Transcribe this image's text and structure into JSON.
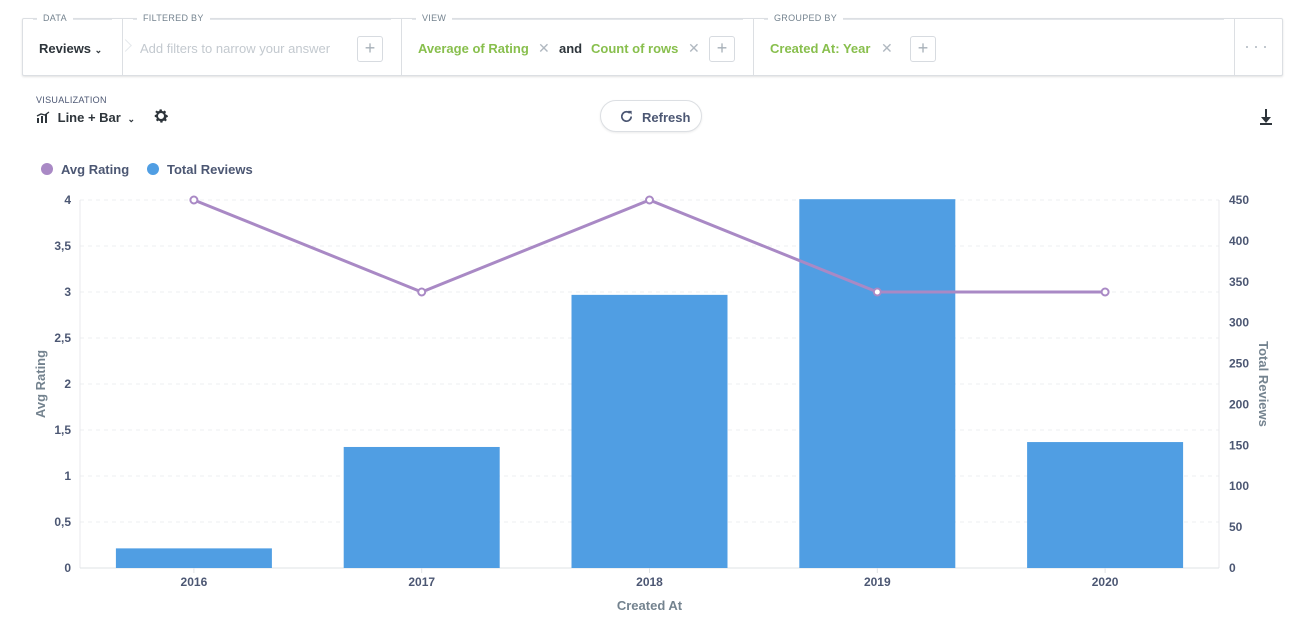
{
  "query_builder": {
    "data": {
      "label": "DATA",
      "table": "Reviews"
    },
    "filtered_by": {
      "label": "FILTERED BY",
      "placeholder": "Add filters to narrow your answer"
    },
    "view": {
      "label": "VIEW",
      "metric1": "Average of Rating",
      "joiner": "and",
      "metric2": "Count of rows"
    },
    "grouped_by": {
      "label": "GROUPED BY",
      "value": "Created At: Year"
    }
  },
  "visualization": {
    "label": "VISUALIZATION",
    "type": "Line + Bar"
  },
  "refresh_label": "Refresh",
  "colors": {
    "accent_green": "#88bf4d",
    "line": "#a989c5",
    "bar": "#509ee3"
  },
  "chart_data": {
    "type": "bar",
    "categories": [
      "2016",
      "2017",
      "2018",
      "2019",
      "2020"
    ],
    "xlabel": "Created At",
    "series": [
      {
        "name": "Avg Rating",
        "type": "line",
        "axis": "left",
        "values": [
          4,
          3,
          4,
          3,
          3
        ]
      },
      {
        "name": "Total Reviews",
        "type": "bar",
        "axis": "right",
        "values": [
          24,
          148,
          334,
          451,
          154
        ]
      }
    ],
    "y_left": {
      "label": "Avg Rating",
      "range": [
        0,
        4
      ],
      "ticks": [
        "0",
        "0,5",
        "1",
        "1,5",
        "2",
        "2,5",
        "3",
        "3,5",
        "4"
      ]
    },
    "y_right": {
      "label": "Total Reviews",
      "range": [
        0,
        450
      ],
      "ticks": [
        "0",
        "50",
        "100",
        "150",
        "200",
        "250",
        "300",
        "350",
        "400",
        "450"
      ]
    },
    "legend": "top-left",
    "grid": true
  }
}
